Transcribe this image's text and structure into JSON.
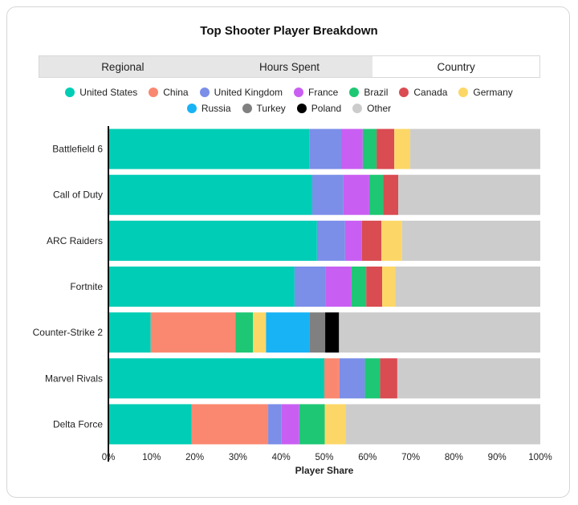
{
  "tabs": [
    {
      "label": "Regional",
      "active": false
    },
    {
      "label": "Hours Spent",
      "active": false
    },
    {
      "label": "Country",
      "active": true
    }
  ],
  "chart_data": {
    "type": "bar",
    "orientation": "horizontal",
    "stacked": true,
    "title": "Top Shooter Player Breakdown",
    "xlabel": "Player Share",
    "ylabel": "",
    "xlim": [
      0,
      100
    ],
    "x_ticks": [
      "0%",
      "10%",
      "20%",
      "30%",
      "40%",
      "50%",
      "60%",
      "70%",
      "80%",
      "90%",
      "100%"
    ],
    "legend_position": "top",
    "grid": false,
    "categories": [
      "Battlefield 6",
      "Call of Duty",
      "ARC Raiders",
      "Fortnite",
      "Counter-Strike 2",
      "Marvel Rivals",
      "Delta Force"
    ],
    "series": [
      {
        "name": "United States",
        "color": "#00cdb5",
        "values": [
          46.5,
          47.2,
          48.3,
          43.1,
          9.8,
          50.0,
          19.3
        ]
      },
      {
        "name": "China",
        "color": "#fa8870",
        "values": [
          0,
          0,
          0,
          0,
          19.6,
          3.5,
          17.7
        ]
      },
      {
        "name": "United Kingdom",
        "color": "#7b8ee8",
        "values": [
          7.4,
          7.2,
          6.5,
          7.2,
          0,
          5.9,
          3.1
        ]
      },
      {
        "name": "France",
        "color": "#c95ff2",
        "values": [
          5.0,
          6.0,
          3.9,
          6.0,
          0,
          0,
          4.1
        ]
      },
      {
        "name": "Brazil",
        "color": "#1ec774",
        "values": [
          3.2,
          3.2,
          0,
          3.4,
          4.1,
          3.5,
          5.9
        ]
      },
      {
        "name": "Canada",
        "color": "#d94c52",
        "values": [
          4.1,
          3.5,
          4.5,
          3.7,
          0,
          4.0,
          0
        ]
      },
      {
        "name": "Germany",
        "color": "#fcd767",
        "values": [
          3.7,
          0,
          4.8,
          3.0,
          3.0,
          0,
          4.8
        ]
      },
      {
        "name": "Russia",
        "color": "#18b3f5",
        "values": [
          0,
          0,
          0,
          0,
          10.0,
          0,
          0
        ]
      },
      {
        "name": "Turkey",
        "color": "#808080",
        "values": [
          0,
          0,
          0,
          0,
          3.7,
          0,
          0
        ]
      },
      {
        "name": "Poland",
        "color": "#000000",
        "values": [
          0,
          0,
          0,
          0,
          3.2,
          0,
          0
        ]
      },
      {
        "name": "Other",
        "color": "#cccccc",
        "values": [
          30.1,
          32.9,
          32.0,
          33.6,
          46.6,
          33.1,
          45.1
        ]
      }
    ]
  }
}
